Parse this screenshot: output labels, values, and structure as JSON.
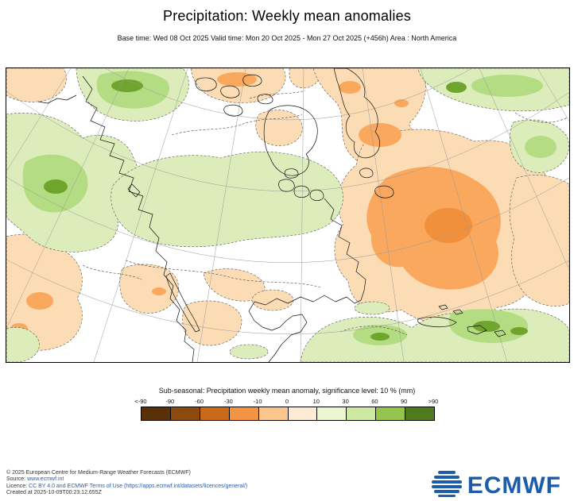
{
  "header": {
    "title": "Precipitation: Weekly mean anomalies",
    "subtitle": "Base time: Wed 08 Oct 2025 Valid time: Mon 20 Oct 2025 - Mon 27 Oct 2025 (+456h) Area : North America"
  },
  "map": {
    "region": "North America",
    "description": "Filled anomaly map: greens = positive precipitation anomaly, oranges/browns = negative anomaly, dashed lines = significance contours",
    "colors": {
      "light_green": "#dcedbb",
      "medium_green": "#b4dc82",
      "dark_green": "#6fa52c",
      "light_orange": "#fcdcb4",
      "medium_orange": "#f9a85e",
      "strong_orange": "#f28f3a",
      "coastline": "#111111",
      "graticule": "#999999"
    }
  },
  "legend": {
    "title": "Sub-seasonal: Precipitation weekly mean anomaly, significance level: 10 % (mm)",
    "tick_labels": [
      "<-90",
      "-90",
      "-60",
      "-30",
      "-10",
      "0",
      "10",
      "30",
      "60",
      "90",
      ">90"
    ],
    "segment_colors": [
      "#5a3008",
      "#8c4a10",
      "#c96a1a",
      "#f29444",
      "#fbc68e",
      "#fdebd3",
      "#eef5d2",
      "#cfe8a2",
      "#94c44e",
      "#4f7a1d"
    ]
  },
  "footer": {
    "copyright": "© 2025 European Centre for Medium-Range Weather Forecasts (ECMWF)",
    "source_label": "Source:",
    "source_url": "www.ecmwf.int",
    "licence_label": "Licence:",
    "licence_text": "CC BY 4.0 and ECMWF Terms of Use (https://apps.ecmwf.int/datasets/licences/general/)",
    "created": "Created at 2025-10-09T00:23:12.655Z"
  },
  "logo": {
    "text": "ECMWF",
    "color": "#1d5bab"
  }
}
